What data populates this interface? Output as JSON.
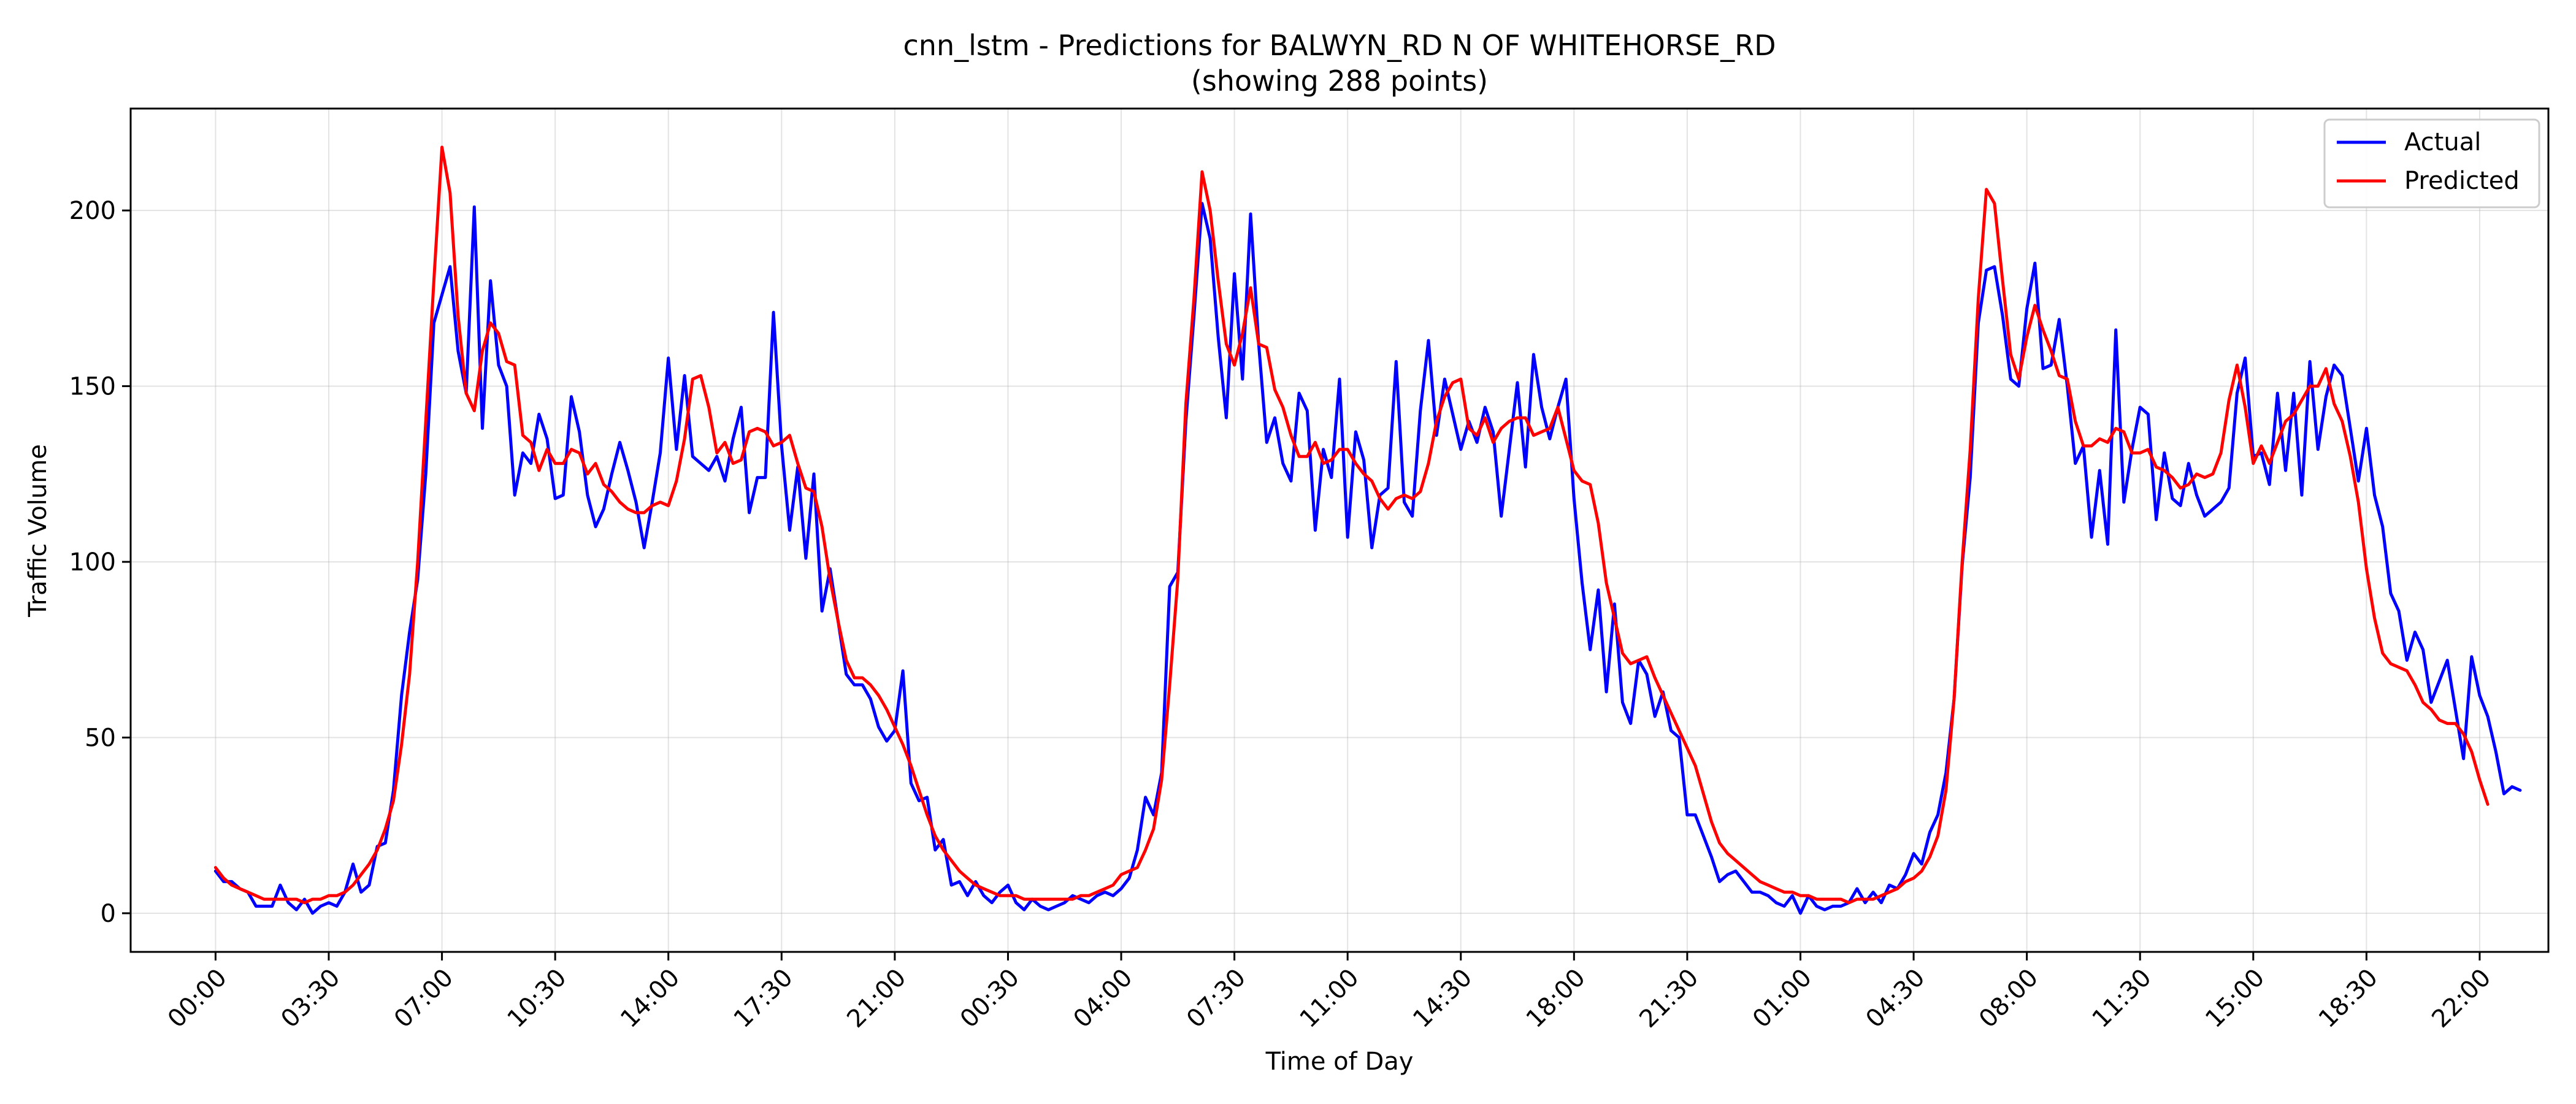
{
  "chart_data": {
    "type": "line",
    "title_line1": "cnn_lstm - Predictions for BALWYN_RD N OF WHITEHORSE_RD",
    "title_line2": "(showing 288 points)",
    "xlabel": "Time of Day",
    "ylabel": "Traffic Volume",
    "ylim": [
      -11,
      229
    ],
    "yticks": [
      0,
      50,
      100,
      150,
      200
    ],
    "xlim": [
      -10.5,
      288.5
    ],
    "xtick_positions": [
      0,
      14,
      28,
      42,
      56,
      70,
      84,
      98,
      112,
      126,
      140,
      154,
      168,
      182,
      196,
      210,
      224,
      238,
      252,
      266,
      280
    ],
    "xtick_labels": [
      "00:00",
      "03:30",
      "07:00",
      "10:30",
      "14:00",
      "17:30",
      "21:00",
      "00:30",
      "04:00",
      "07:30",
      "11:00",
      "14:30",
      "18:00",
      "21:30",
      "01:00",
      "04:30",
      "08:00",
      "11:30",
      "15:00",
      "18:30",
      "22:00"
    ],
    "grid": true,
    "legend_position": "top-right",
    "x": "0..287 (15-minute intervals)",
    "series": [
      {
        "name": "Actual",
        "color": "#0000ff",
        "values": [
          12,
          9,
          9,
          7,
          6,
          2,
          2,
          2,
          8,
          3,
          1,
          4,
          0,
          2,
          3,
          2,
          6,
          14,
          6,
          8,
          19,
          20,
          35,
          62,
          80,
          95,
          125,
          168,
          176,
          184,
          160,
          148,
          201,
          138,
          180,
          156,
          150,
          119,
          131,
          128,
          142,
          135,
          118,
          119,
          147,
          137,
          119,
          110,
          115,
          125,
          134,
          126,
          117,
          104,
          117,
          131,
          158,
          132,
          153,
          130,
          128,
          126,
          130,
          123,
          135,
          144,
          114,
          124,
          124,
          171,
          133,
          109,
          127,
          101,
          125,
          86,
          98,
          83,
          68,
          65,
          65,
          61,
          53,
          49,
          52,
          69,
          37,
          32,
          33,
          18,
          21,
          8,
          9,
          5,
          9,
          5,
          3,
          6,
          8,
          3,
          1,
          4,
          2,
          1,
          2,
          3,
          5,
          4,
          3,
          5,
          6,
          5,
          7,
          10,
          18,
          33,
          28,
          40,
          93,
          97,
          140,
          170,
          202,
          192,
          164,
          141,
          182,
          152,
          199,
          162,
          134,
          141,
          128,
          123,
          148,
          143,
          109,
          132,
          124,
          152,
          107,
          137,
          129,
          104,
          119,
          121,
          157,
          117,
          113,
          143,
          163,
          136,
          152,
          142,
          132,
          140,
          134,
          144,
          137,
          113,
          132,
          151,
          127,
          159,
          144,
          135,
          144,
          152,
          118,
          94,
          75,
          92,
          63,
          88,
          60,
          54,
          72,
          68,
          56,
          63,
          52,
          50,
          28,
          28,
          22,
          16,
          9,
          11,
          12,
          9,
          6,
          6,
          5,
          3,
          2,
          5,
          0,
          5,
          2,
          1,
          2,
          2,
          3,
          7,
          3,
          6,
          3,
          8,
          7,
          11,
          17,
          14,
          23,
          28,
          40,
          61,
          99,
          124,
          168,
          183,
          184,
          170,
          152,
          150,
          172,
          185,
          155,
          156,
          169,
          150,
          128,
          133,
          107,
          126,
          105,
          166,
          117,
          132,
          144,
          142,
          112,
          131,
          118,
          116,
          128,
          119,
          113,
          115,
          117,
          121,
          148,
          158,
          130,
          131,
          122,
          148,
          126,
          148,
          119,
          157,
          132,
          147,
          156,
          153,
          138,
          123,
          138,
          119,
          110,
          91,
          86,
          72,
          80,
          75,
          60,
          66,
          72,
          58,
          44,
          73,
          62,
          56,
          46,
          34,
          36,
          35
        ]
      },
      {
        "name": "Predicted",
        "color": "#ff0000",
        "values": [
          13,
          10,
          8,
          7,
          6,
          5,
          4,
          4,
          4,
          4,
          4,
          3,
          4,
          4,
          5,
          5,
          6,
          8,
          11,
          14,
          18,
          24,
          32,
          48,
          68,
          100,
          140,
          180,
          218,
          205,
          170,
          148,
          143,
          160,
          168,
          165,
          157,
          156,
          136,
          134,
          126,
          132,
          128,
          128,
          132,
          131,
          125,
          128,
          122,
          120,
          117,
          115,
          114,
          114,
          116,
          117,
          116,
          123,
          135,
          152,
          153,
          144,
          131,
          134,
          128,
          129,
          137,
          138,
          137,
          133,
          134,
          136,
          128,
          121,
          120,
          110,
          95,
          83,
          72,
          67,
          67,
          65,
          62,
          58,
          53,
          48,
          42,
          35,
          28,
          22,
          18,
          15,
          12,
          10,
          8,
          7,
          6,
          5,
          5,
          5,
          4,
          4,
          4,
          4,
          4,
          4,
          4,
          5,
          5,
          6,
          7,
          8,
          11,
          12,
          13,
          18,
          24,
          38,
          65,
          95,
          145,
          175,
          211,
          200,
          180,
          162,
          156,
          165,
          178,
          162,
          161,
          149,
          144,
          136,
          130,
          130,
          134,
          128,
          129,
          132,
          132,
          128,
          125,
          123,
          118,
          115,
          118,
          119,
          118,
          120,
          128,
          140,
          147,
          151,
          152,
          138,
          136,
          141,
          134,
          138,
          140,
          141,
          141,
          136,
          137,
          138,
          144,
          135,
          126,
          123,
          122,
          111,
          94,
          84,
          74,
          71,
          72,
          73,
          67,
          62,
          57,
          52,
          47,
          42,
          34,
          26,
          20,
          17,
          15,
          13,
          11,
          9,
          8,
          7,
          6,
          6,
          5,
          5,
          4,
          4,
          4,
          4,
          3,
          4,
          4,
          4,
          5,
          6,
          7,
          9,
          10,
          12,
          16,
          22,
          35,
          61,
          100,
          132,
          175,
          206,
          202,
          180,
          159,
          152,
          164,
          173,
          166,
          160,
          153,
          152,
          140,
          133,
          133,
          135,
          134,
          138,
          137,
          131,
          131,
          132,
          127,
          126,
          124,
          121,
          122,
          125,
          124,
          125,
          131,
          146,
          156,
          144,
          128,
          133,
          128,
          134,
          140,
          142,
          146,
          150,
          150,
          155,
          145,
          140,
          130,
          117,
          98,
          84,
          74,
          71,
          70,
          69,
          65,
          60,
          58,
          55,
          54,
          54,
          51,
          46,
          38,
          31
        ]
      }
    ]
  }
}
